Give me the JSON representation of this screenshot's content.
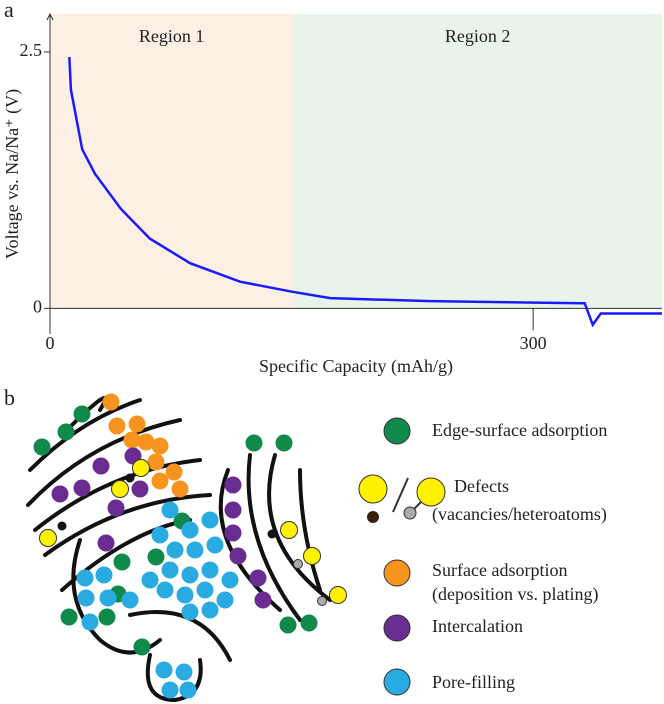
{
  "panel_labels": [
    "a",
    "b"
  ],
  "chart_data": {
    "type": "line",
    "xlabel": "Specific Capacity (mAh/g)",
    "ylabel": "Voltage vs. Na/Na⁺ (V)",
    "x": [
      12,
      13,
      20,
      28,
      44,
      62,
      87,
      118,
      151,
      174,
      236,
      330,
      332,
      337,
      342,
      380
    ],
    "values": [
      2.45,
      2.13,
      1.55,
      1.31,
      0.97,
      0.68,
      0.44,
      0.26,
      0.16,
      0.1,
      0.07,
      0.05,
      0.05,
      -0.16,
      -0.05,
      -0.05
    ],
    "color": "#1a1aff",
    "xlim": [
      0,
      380
    ],
    "ylim": [
      -0.25,
      2.87
    ],
    "xticks": [
      0,
      300
    ],
    "yticks": [
      0,
      2.5
    ],
    "regions": [
      {
        "name": "Region 1",
        "range": [
          0,
          151
        ],
        "color": "#fcefe4"
      },
      {
        "name": "Region 2",
        "range": [
          151,
          380
        ],
        "color": "#e8f4ea"
      }
    ]
  },
  "diagram": {
    "legend": [
      {
        "lines": [
          "Edge-surface adsorption"
        ]
      },
      {
        "lines": [
          "Defects",
          "(vacancies/heteroatoms)"
        ]
      },
      {
        "lines": [
          "Surface adsorption",
          "(deposition vs. plating)"
        ]
      },
      {
        "lines": [
          "Intercalation"
        ]
      },
      {
        "lines": [
          "Pore-filling"
        ]
      }
    ]
  }
}
